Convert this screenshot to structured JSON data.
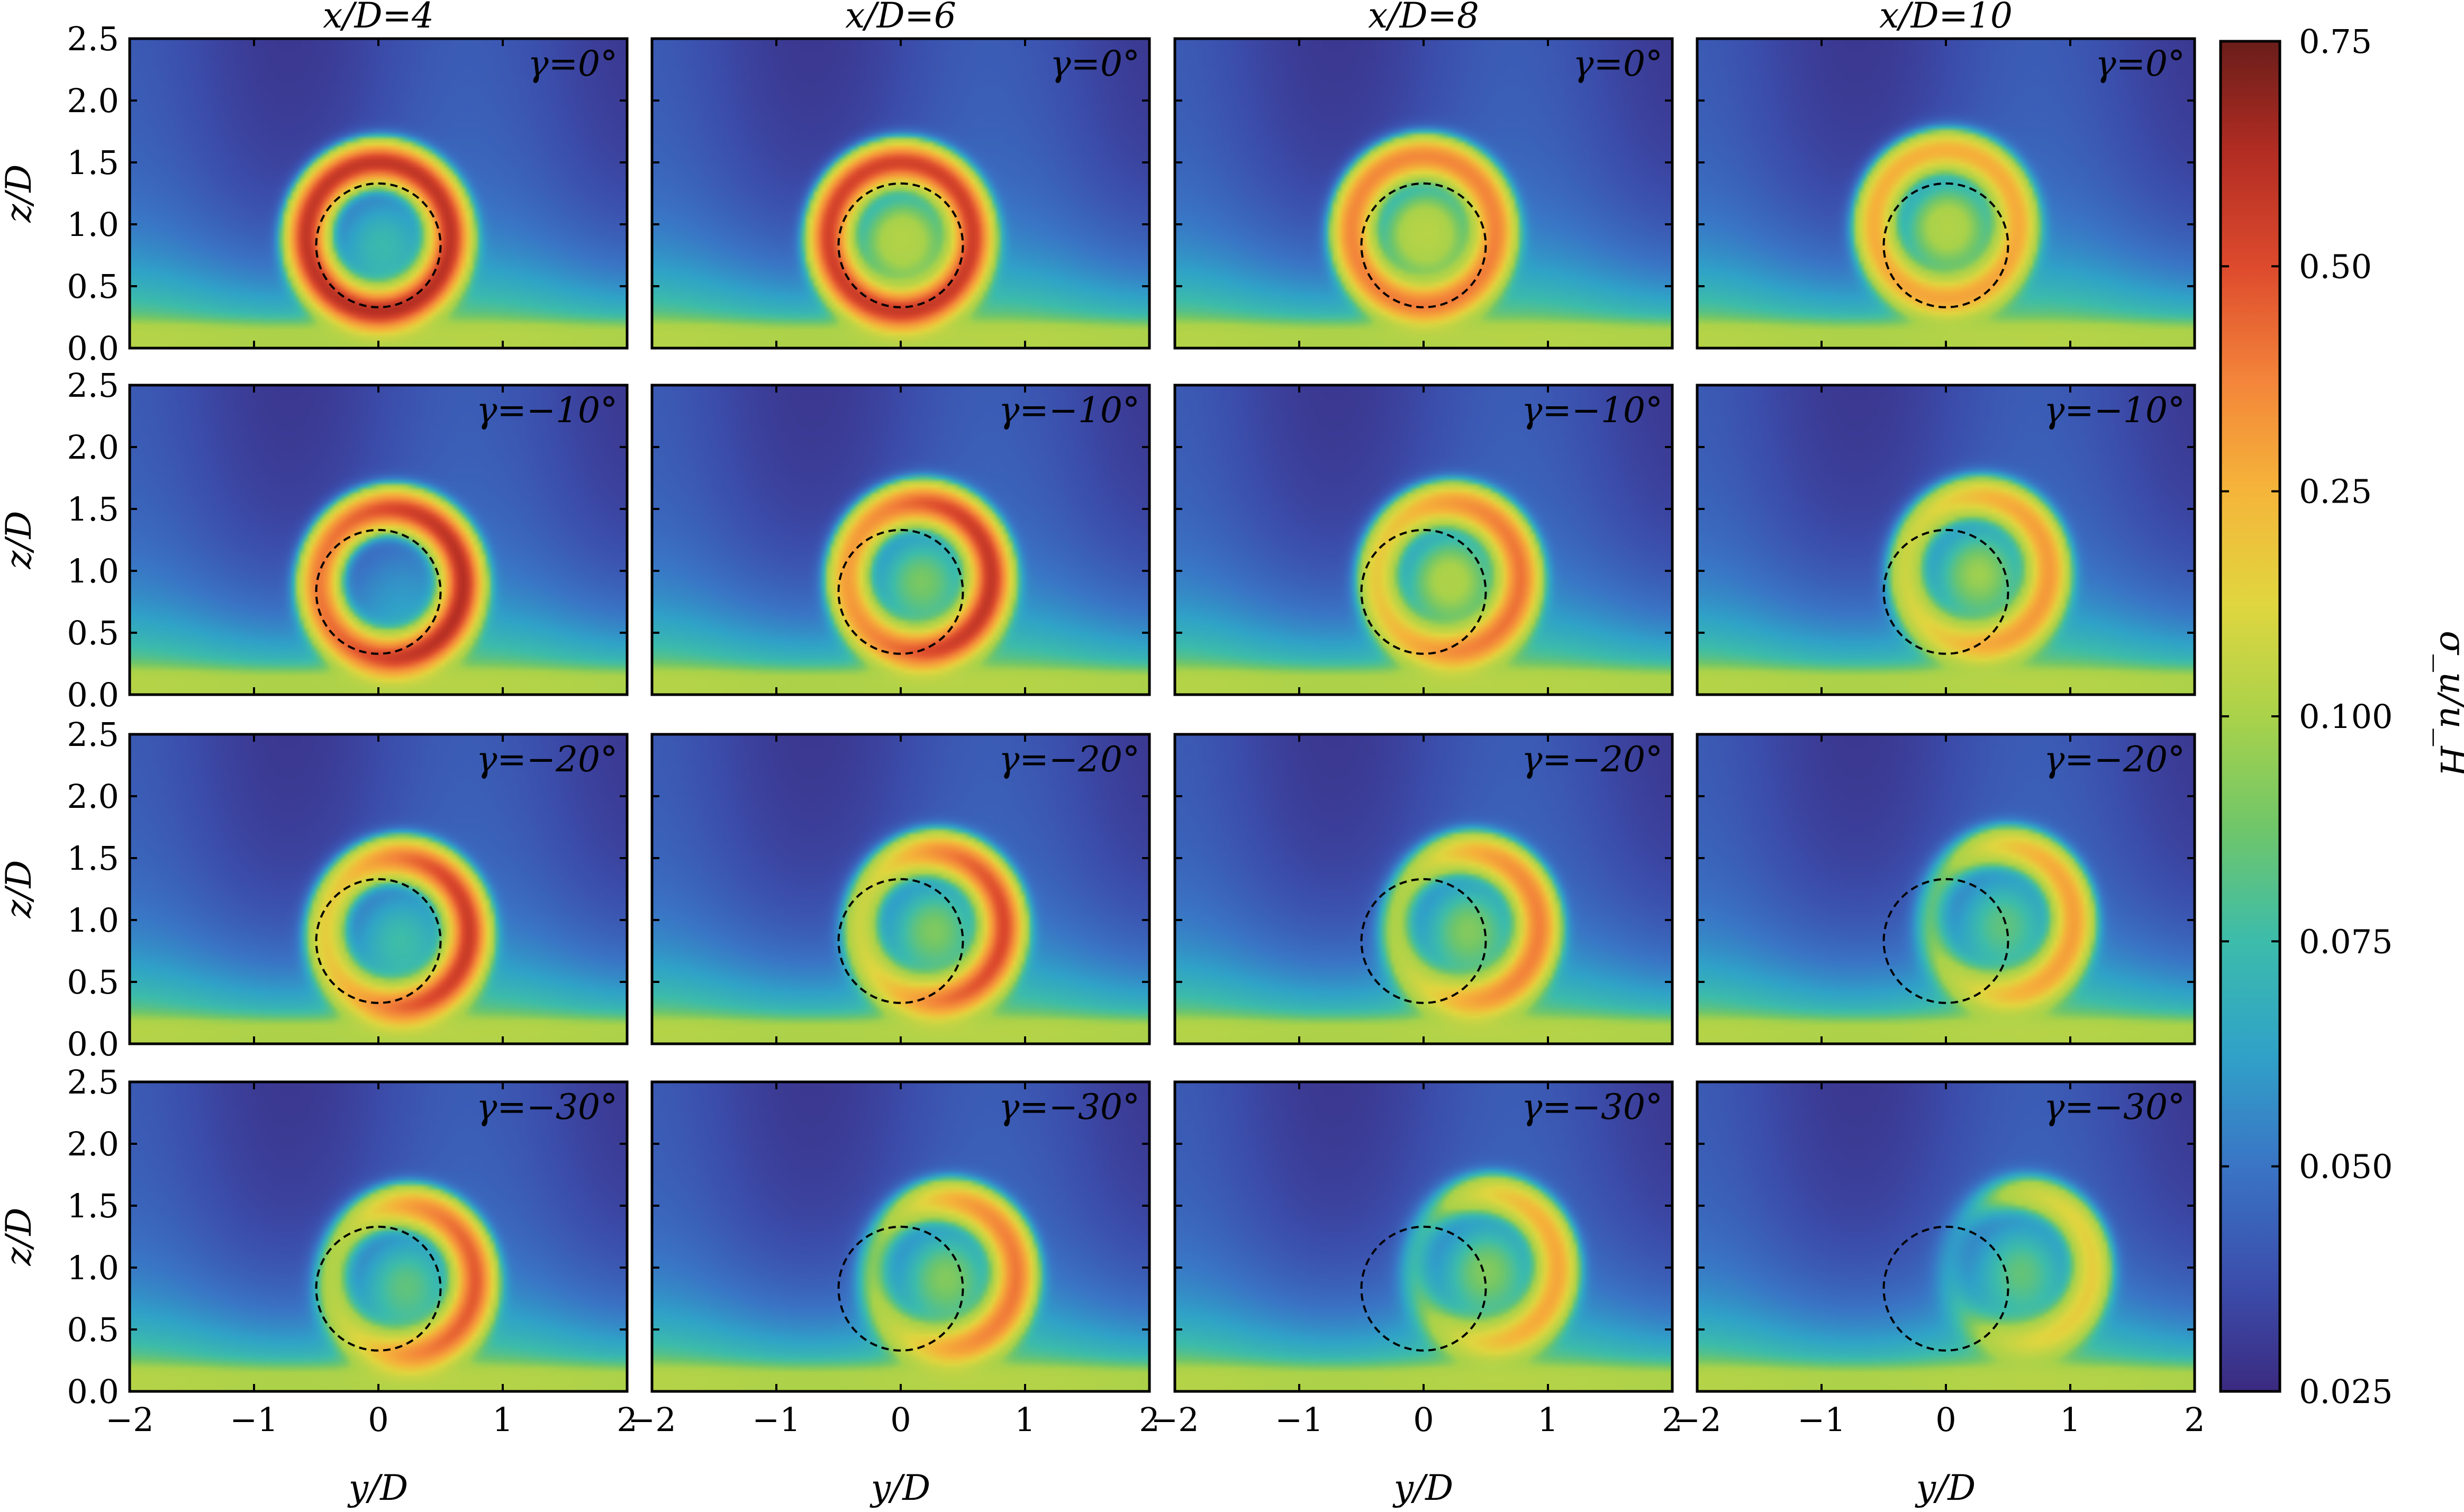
{
  "chart_data": {
    "type": "heatmap",
    "grid": {
      "rows": 4,
      "cols": 4,
      "column_titles": [
        "x/D=4",
        "x/D=6",
        "x/D=8",
        "x/D=10"
      ],
      "row_labels": [
        "γ=0°",
        "γ=−10°",
        "γ=−20°",
        "γ=−30°"
      ]
    },
    "xlabel": "y/D",
    "ylabel": "z/D",
    "xlim": [
      -2,
      2
    ],
    "ylim": [
      0,
      2.5
    ],
    "xticks": [
      -2,
      -1,
      0,
      1,
      2
    ],
    "xtick_labels": [
      "−2",
      "−1",
      "0",
      "1",
      "2"
    ],
    "yticks": [
      0.0,
      0.5,
      1.0,
      1.5,
      2.0,
      2.5
    ],
    "ytick_labels": [
      "0.0",
      "0.5",
      "1.0",
      "1.5",
      "2.0",
      "2.5"
    ],
    "rotor_outline": {
      "center_y": 0.0,
      "center_z": 0.83,
      "radius": 0.5,
      "style": "dashed",
      "color": "#000000"
    },
    "colorbar": {
      "label": "σ_u/ū_H",
      "ticks": [
        0.025,
        0.05,
        0.075,
        0.1,
        0.25,
        0.5,
        0.75
      ],
      "tick_labels": [
        "0.025",
        "0.050",
        "0.075",
        "0.100",
        "0.25",
        "0.50",
        "0.75"
      ],
      "colormap_stops": [
        "#3b2a80",
        "#3b4fad",
        "#3a74c5",
        "#30a2c8",
        "#3cbcab",
        "#6fc66a",
        "#a9d24a",
        "#e0d63f",
        "#f5b53a",
        "#f3843a",
        "#dd4a2d",
        "#b32d23",
        "#6a1d1a"
      ]
    },
    "panels": [
      {
        "row": 0,
        "col": 0,
        "x_over_D": 4,
        "yaw_deg": 0,
        "wake_center_y": 0.0,
        "wake_center_z": 0.9,
        "ring_peak": 0.6,
        "core": 0.1,
        "skew": 0.0,
        "crescent_gap": 0.0
      },
      {
        "row": 0,
        "col": 1,
        "x_over_D": 6,
        "yaw_deg": 0,
        "wake_center_y": 0.0,
        "wake_center_z": 0.9,
        "ring_peak": 0.55,
        "core": 0.15,
        "skew": 0.0,
        "crescent_gap": 0.0
      },
      {
        "row": 0,
        "col": 2,
        "x_over_D": 8,
        "yaw_deg": 0,
        "wake_center_y": 0.0,
        "wake_center_z": 0.95,
        "ring_peak": 0.38,
        "core": 0.16,
        "skew": 0.0,
        "crescent_gap": 0.0
      },
      {
        "row": 0,
        "col": 3,
        "x_over_D": 10,
        "yaw_deg": 0,
        "wake_center_y": 0.0,
        "wake_center_z": 1.0,
        "ring_peak": 0.28,
        "core": 0.15,
        "skew": 0.0,
        "crescent_gap": 0.0
      },
      {
        "row": 1,
        "col": 0,
        "x_over_D": 4,
        "yaw_deg": -10,
        "wake_center_y": 0.1,
        "wake_center_z": 0.9,
        "ring_peak": 0.55,
        "core": 0.08,
        "skew": 0.3,
        "crescent_gap": 0.15
      },
      {
        "row": 1,
        "col": 1,
        "x_over_D": 6,
        "yaw_deg": -10,
        "wake_center_y": 0.15,
        "wake_center_z": 0.95,
        "ring_peak": 0.5,
        "core": 0.12,
        "skew": 0.4,
        "crescent_gap": 0.25
      },
      {
        "row": 1,
        "col": 2,
        "x_over_D": 8,
        "yaw_deg": -10,
        "wake_center_y": 0.2,
        "wake_center_z": 0.95,
        "ring_peak": 0.35,
        "core": 0.14,
        "skew": 0.45,
        "crescent_gap": 0.3
      },
      {
        "row": 1,
        "col": 3,
        "x_over_D": 10,
        "yaw_deg": -10,
        "wake_center_y": 0.25,
        "wake_center_z": 1.0,
        "ring_peak": 0.27,
        "core": 0.13,
        "skew": 0.5,
        "crescent_gap": 0.35
      },
      {
        "row": 2,
        "col": 0,
        "x_over_D": 4,
        "yaw_deg": -20,
        "wake_center_y": 0.15,
        "wake_center_z": 0.9,
        "ring_peak": 0.45,
        "core": 0.1,
        "skew": 0.6,
        "crescent_gap": 0.45
      },
      {
        "row": 2,
        "col": 1,
        "x_over_D": 6,
        "yaw_deg": -20,
        "wake_center_y": 0.25,
        "wake_center_z": 0.95,
        "ring_peak": 0.4,
        "core": 0.12,
        "skew": 0.7,
        "crescent_gap": 0.55
      },
      {
        "row": 2,
        "col": 2,
        "x_over_D": 8,
        "yaw_deg": -20,
        "wake_center_y": 0.35,
        "wake_center_z": 0.95,
        "ring_peak": 0.3,
        "core": 0.12,
        "skew": 0.75,
        "crescent_gap": 0.6
      },
      {
        "row": 2,
        "col": 3,
        "x_over_D": 10,
        "yaw_deg": -20,
        "wake_center_y": 0.45,
        "wake_center_z": 1.0,
        "ring_peak": 0.24,
        "core": 0.11,
        "skew": 0.8,
        "crescent_gap": 0.65
      },
      {
        "row": 3,
        "col": 0,
        "x_over_D": 4,
        "yaw_deg": -30,
        "wake_center_y": 0.2,
        "wake_center_z": 0.9,
        "ring_peak": 0.35,
        "core": 0.11,
        "skew": 0.85,
        "crescent_gap": 0.6
      },
      {
        "row": 3,
        "col": 1,
        "x_over_D": 6,
        "yaw_deg": -30,
        "wake_center_y": 0.35,
        "wake_center_z": 0.95,
        "ring_peak": 0.3,
        "core": 0.12,
        "skew": 0.9,
        "crescent_gap": 0.65
      },
      {
        "row": 3,
        "col": 2,
        "x_over_D": 8,
        "yaw_deg": -30,
        "wake_center_y": 0.5,
        "wake_center_z": 1.0,
        "ring_peak": 0.22,
        "core": 0.12,
        "skew": 0.9,
        "crescent_gap": 0.7
      },
      {
        "row": 3,
        "col": 3,
        "x_over_D": 10,
        "yaw_deg": -30,
        "wake_center_y": 0.6,
        "wake_center_z": 1.0,
        "ring_peak": 0.16,
        "core": 0.11,
        "skew": 0.9,
        "crescent_gap": 0.75
      }
    ]
  }
}
